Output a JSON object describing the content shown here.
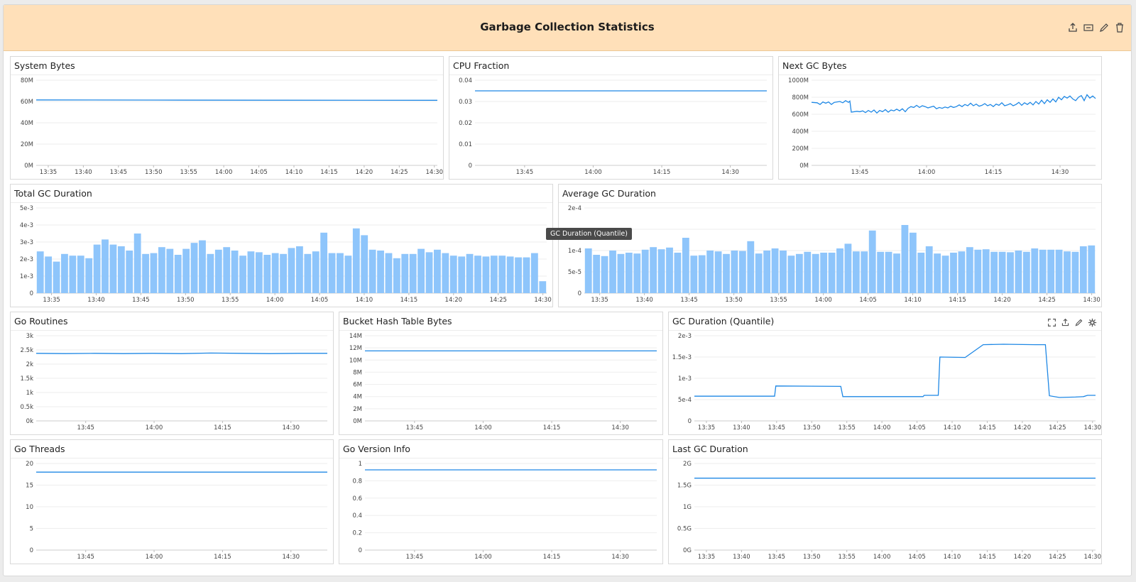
{
  "dashboard": {
    "title": "Garbage Collection Statistics",
    "header_icons": [
      "export-icon",
      "embed-icon",
      "edit-icon",
      "trash-icon"
    ],
    "tooltip": "GC Duration (Quantile)",
    "colors": {
      "header_bg": "#ffe0b9",
      "line": "#1f88e5",
      "bar": "#8ec5fb"
    }
  },
  "panels": [
    {
      "id": "system-bytes",
      "title": "System Bytes",
      "type": "line",
      "yticks": [
        "0M",
        "20M",
        "40M",
        "60M",
        "80M"
      ],
      "ylim": [
        0,
        80
      ],
      "xticks": [
        "13:35",
        "13:40",
        "13:45",
        "13:50",
        "13:55",
        "14:00",
        "14:05",
        "14:10",
        "14:15",
        "14:20",
        "14:25",
        "14:30"
      ],
      "series": [
        {
          "points": [
            [
              0,
              61.5
            ],
            [
              0.3,
              61.3
            ],
            [
              0.6,
              61.2
            ],
            [
              1,
              61.1
            ]
          ]
        }
      ]
    },
    {
      "id": "cpu-fraction",
      "title": "CPU Fraction",
      "type": "line",
      "yticks": [
        "0",
        "0.01",
        "0.02",
        "0.03",
        "0.04"
      ],
      "ylim": [
        0,
        0.04
      ],
      "xticks": [
        "13:45",
        "14:00",
        "14:15",
        "14:30"
      ],
      "series": [
        {
          "points": [
            [
              0,
              0.035
            ],
            [
              1,
              0.035
            ]
          ]
        }
      ]
    },
    {
      "id": "next-gc-bytes",
      "title": "Next GC Bytes",
      "type": "line",
      "yticks": [
        "0M",
        "200M",
        "400M",
        "600M",
        "800M",
        "1000M"
      ],
      "ylim": [
        0,
        1000
      ],
      "xticks": [
        "13:45",
        "14:00",
        "14:15",
        "14:30"
      ],
      "series": [
        {
          "points": [
            [
              0,
              740
            ],
            [
              0.02,
              735
            ],
            [
              0.03,
              715
            ],
            [
              0.04,
              745
            ],
            [
              0.05,
              730
            ],
            [
              0.06,
              745
            ],
            [
              0.07,
              715
            ],
            [
              0.08,
              740
            ],
            [
              0.1,
              750
            ],
            [
              0.11,
              735
            ],
            [
              0.12,
              760
            ],
            [
              0.13,
              740
            ],
            [
              0.135,
              755
            ],
            [
              0.14,
              625
            ],
            [
              0.16,
              635
            ],
            [
              0.17,
              630
            ],
            [
              0.18,
              640
            ],
            [
              0.19,
              620
            ],
            [
              0.2,
              645
            ],
            [
              0.21,
              625
            ],
            [
              0.22,
              650
            ],
            [
              0.23,
              615
            ],
            [
              0.24,
              645
            ],
            [
              0.25,
              630
            ],
            [
              0.26,
              655
            ],
            [
              0.27,
              625
            ],
            [
              0.28,
              650
            ],
            [
              0.29,
              640
            ],
            [
              0.3,
              660
            ],
            [
              0.31,
              640
            ],
            [
              0.32,
              665
            ],
            [
              0.33,
              630
            ],
            [
              0.34,
              670
            ],
            [
              0.35,
              690
            ],
            [
              0.36,
              680
            ],
            [
              0.37,
              705
            ],
            [
              0.38,
              680
            ],
            [
              0.39,
              700
            ],
            [
              0.4,
              690
            ],
            [
              0.41,
              675
            ],
            [
              0.42,
              685
            ],
            [
              0.43,
              695
            ],
            [
              0.44,
              665
            ],
            [
              0.45,
              680
            ],
            [
              0.46,
              670
            ],
            [
              0.47,
              685
            ],
            [
              0.48,
              675
            ],
            [
              0.49,
              695
            ],
            [
              0.5,
              680
            ],
            [
              0.51,
              690
            ],
            [
              0.52,
              710
            ],
            [
              0.53,
              690
            ],
            [
              0.54,
              715
            ],
            [
              0.55,
              700
            ],
            [
              0.56,
              730
            ],
            [
              0.57,
              700
            ],
            [
              0.58,
              720
            ],
            [
              0.59,
              695
            ],
            [
              0.6,
              705
            ],
            [
              0.61,
              725
            ],
            [
              0.62,
              700
            ],
            [
              0.63,
              715
            ],
            [
              0.64,
              690
            ],
            [
              0.65,
              720
            ],
            [
              0.66,
              705
            ],
            [
              0.67,
              735
            ],
            [
              0.68,
              700
            ],
            [
              0.69,
              710
            ],
            [
              0.7,
              725
            ],
            [
              0.71,
              700
            ],
            [
              0.72,
              715
            ],
            [
              0.73,
              740
            ],
            [
              0.74,
              705
            ],
            [
              0.75,
              735
            ],
            [
              0.76,
              715
            ],
            [
              0.77,
              740
            ],
            [
              0.78,
              710
            ],
            [
              0.79,
              750
            ],
            [
              0.8,
              720
            ],
            [
              0.81,
              765
            ],
            [
              0.82,
              725
            ],
            [
              0.83,
              770
            ],
            [
              0.84,
              740
            ],
            [
              0.85,
              780
            ],
            [
              0.86,
              745
            ],
            [
              0.87,
              800
            ],
            [
              0.88,
              770
            ],
            [
              0.89,
              810
            ],
            [
              0.9,
              790
            ],
            [
              0.91,
              815
            ],
            [
              0.92,
              780
            ],
            [
              0.93,
              760
            ],
            [
              0.94,
              800
            ],
            [
              0.95,
              820
            ],
            [
              0.96,
              760
            ],
            [
              0.97,
              830
            ],
            [
              0.98,
              790
            ],
            [
              0.99,
              815
            ],
            [
              1.0,
              785
            ]
          ]
        }
      ]
    },
    {
      "id": "total-gc-duration",
      "title": "Total GC Duration",
      "type": "bar",
      "yticks": [
        "0",
        "1e-3",
        "2e-3",
        "3e-3",
        "4e-3",
        "5e-3"
      ],
      "ylim": [
        0,
        5
      ],
      "xticks": [
        "13:35",
        "13:40",
        "13:45",
        "13:50",
        "13:55",
        "14:00",
        "14:05",
        "14:10",
        "14:15",
        "14:20",
        "14:25",
        "14:30"
      ],
      "values": [
        2.45,
        2.15,
        1.85,
        2.3,
        2.2,
        2.2,
        2.05,
        2.85,
        3.15,
        2.85,
        2.75,
        2.5,
        3.5,
        2.3,
        2.35,
        2.7,
        2.6,
        2.25,
        2.6,
        2.95,
        3.1,
        2.3,
        2.55,
        2.7,
        2.5,
        2.2,
        2.45,
        2.4,
        2.25,
        2.35,
        2.3,
        2.65,
        2.75,
        2.3,
        2.45,
        3.55,
        2.35,
        2.35,
        2.2,
        3.8,
        3.4,
        2.55,
        2.5,
        2.35,
        2.05,
        2.3,
        2.3,
        2.6,
        2.4,
        2.55,
        2.35,
        2.2,
        2.15,
        2.3,
        2.2,
        2.15,
        2.2,
        2.2,
        2.15,
        2.1,
        2.1,
        2.35,
        0.7
      ]
    },
    {
      "id": "average-gc-duration",
      "title": "Average GC Duration",
      "type": "bar",
      "yticks": [
        "0",
        "5e-5",
        "1e-4",
        "",
        "2e-4"
      ],
      "ylim": [
        0,
        2
      ],
      "xticks": [
        "13:35",
        "13:40",
        "13:45",
        "13:50",
        "13:55",
        "14:00",
        "14:05",
        "14:10",
        "14:15",
        "14:20",
        "14:25",
        "14:30"
      ],
      "values": [
        1.05,
        0.9,
        0.87,
        1.0,
        0.92,
        0.95,
        0.93,
        1.02,
        1.08,
        1.03,
        1.07,
        0.95,
        1.3,
        0.88,
        0.89,
        1.0,
        0.98,
        0.92,
        1.0,
        0.99,
        1.22,
        0.93,
        1.0,
        1.05,
        1.0,
        0.88,
        0.92,
        0.97,
        0.92,
        0.95,
        0.95,
        1.05,
        1.16,
        0.98,
        0.98,
        1.47,
        0.97,
        0.97,
        0.93,
        1.6,
        1.42,
        0.95,
        1.1,
        0.93,
        0.88,
        0.95,
        0.98,
        1.08,
        1.02,
        1.03,
        0.97,
        0.97,
        0.96,
        1.0,
        0.97,
        1.05,
        1.02,
        1.02,
        1.02,
        0.98,
        0.97,
        1.1,
        1.12
      ]
    },
    {
      "id": "go-routines",
      "title": "Go Routines",
      "type": "line",
      "yticks": [
        "0k",
        "0.5k",
        "1k",
        "1.5k",
        "2k",
        "2.5k",
        "3k"
      ],
      "ylim": [
        0,
        3
      ],
      "xticks": [
        "13:45",
        "14:00",
        "14:15",
        "14:30"
      ],
      "series": [
        {
          "points": [
            [
              0,
              2.38
            ],
            [
              0.1,
              2.37
            ],
            [
              0.2,
              2.38
            ],
            [
              0.3,
              2.37
            ],
            [
              0.4,
              2.38
            ],
            [
              0.5,
              2.37
            ],
            [
              0.6,
              2.39
            ],
            [
              0.7,
              2.38
            ],
            [
              0.8,
              2.37
            ],
            [
              0.9,
              2.38
            ],
            [
              1,
              2.38
            ]
          ]
        }
      ]
    },
    {
      "id": "bucket-hash-table-bytes",
      "title": "Bucket Hash Table Bytes",
      "type": "line",
      "yticks": [
        "0M",
        "2M",
        "4M",
        "6M",
        "8M",
        "10M",
        "12M",
        "14M"
      ],
      "ylim": [
        0,
        14
      ],
      "xticks": [
        "13:45",
        "14:00",
        "14:15",
        "14:30"
      ],
      "series": [
        {
          "points": [
            [
              0,
              11.5
            ],
            [
              1,
              11.5
            ]
          ]
        }
      ]
    },
    {
      "id": "gc-duration-quantile",
      "title": "GC Duration (Quantile)",
      "type": "line",
      "show_controls": true,
      "control_icons": [
        "expand-icon",
        "export-icon",
        "edit-icon",
        "gear-icon"
      ],
      "yticks": [
        "0",
        "5e-4",
        "1e-3",
        "1.5e-3",
        "2e-3"
      ],
      "ylim": [
        0,
        2
      ],
      "xticks": [
        "13:35",
        "13:40",
        "13:45",
        "13:50",
        "13:55",
        "14:00",
        "14:05",
        "14:10",
        "14:15",
        "14:20",
        "14:25",
        "14:30"
      ],
      "series": [
        {
          "points": [
            [
              0,
              0.58
            ],
            [
              0.2,
              0.58
            ],
            [
              0.203,
              0.82
            ],
            [
              0.365,
              0.81
            ],
            [
              0.37,
              0.57
            ],
            [
              0.52,
              0.57
            ],
            [
              0.57,
              0.57
            ],
            [
              0.573,
              0.6
            ],
            [
              0.608,
              0.6
            ],
            [
              0.612,
              1.5
            ],
            [
              0.675,
              1.49
            ],
            [
              0.72,
              1.79
            ],
            [
              0.77,
              1.8
            ],
            [
              0.85,
              1.79
            ],
            [
              0.875,
              1.79
            ],
            [
              0.885,
              0.59
            ],
            [
              0.91,
              0.55
            ],
            [
              0.95,
              0.56
            ],
            [
              0.97,
              0.57
            ],
            [
              0.98,
              0.6
            ],
            [
              1,
              0.6
            ]
          ]
        }
      ]
    },
    {
      "id": "go-threads",
      "title": "Go Threads",
      "type": "line",
      "yticks": [
        "0",
        "5",
        "10",
        "15",
        "20"
      ],
      "ylim": [
        0,
        20
      ],
      "xticks": [
        "13:45",
        "14:00",
        "14:15",
        "14:30"
      ],
      "series": [
        {
          "points": [
            [
              0,
              18
            ],
            [
              1,
              18
            ]
          ]
        }
      ]
    },
    {
      "id": "go-version-info",
      "title": "Go Version Info",
      "type": "line",
      "yticks": [
        "0",
        "0.2",
        "0.4",
        "0.6",
        "0.8",
        "1"
      ],
      "ylim": [
        0,
        1.08
      ],
      "xticks": [
        "13:45",
        "14:00",
        "14:15",
        "14:30"
      ],
      "series": [
        {
          "points": [
            [
              0,
              1
            ],
            [
              1,
              1
            ]
          ]
        }
      ]
    },
    {
      "id": "last-gc-duration",
      "title": "Last GC Duration",
      "type": "line",
      "yticks": [
        "0G",
        "0.5G",
        "1G",
        "1.5G",
        "2G"
      ],
      "ylim": [
        0,
        2
      ],
      "xticks": [
        "13:35",
        "13:40",
        "13:45",
        "13:50",
        "13:55",
        "14:00",
        "14:05",
        "14:10",
        "14:15",
        "14:20",
        "14:25",
        "14:30"
      ],
      "series": [
        {
          "points": [
            [
              0,
              1.66
            ],
            [
              1,
              1.66
            ]
          ]
        }
      ]
    }
  ]
}
